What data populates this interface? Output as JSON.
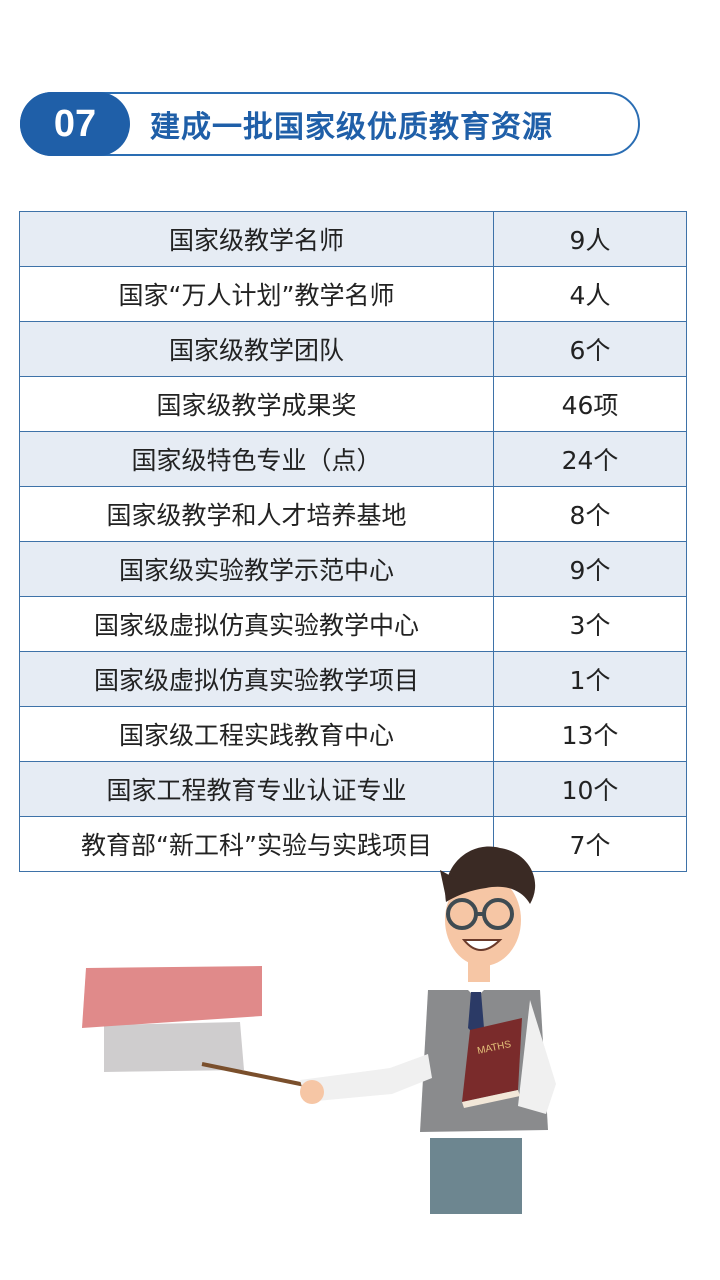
{
  "header": {
    "number": "07",
    "title": "建成一批国家级优质教育资源"
  },
  "table": {
    "rows": [
      {
        "label": "国家级教学名师",
        "value": "9人"
      },
      {
        "label": "国家“万人计划”教学名师",
        "value": "4人"
      },
      {
        "label": "国家级教学团队",
        "value": "6个"
      },
      {
        "label": "国家级教学成果奖",
        "value": "46项"
      },
      {
        "label": "国家级特色专业（点）",
        "value": "24个"
      },
      {
        "label": "国家级教学和人才培养基地",
        "value": "8个"
      },
      {
        "label": "国家级实验教学示范中心",
        "value": "9个"
      },
      {
        "label": "国家级虚拟仿真实验教学中心",
        "value": "3个"
      },
      {
        "label": "国家级虚拟仿真实验教学项目",
        "value": "1个"
      },
      {
        "label": "国家级工程实践教育中心",
        "value": "13个"
      },
      {
        "label": "国家工程教育专业认证专业",
        "value": "10个"
      },
      {
        "label": "教育部“新工科”实验与实践项目",
        "value": "7个"
      }
    ]
  },
  "illustration": {
    "book_label": "MATHS"
  },
  "colors": {
    "accent": "#1f5fa8",
    "row_alt": "#e6ecf4",
    "border": "#3e72a8"
  }
}
